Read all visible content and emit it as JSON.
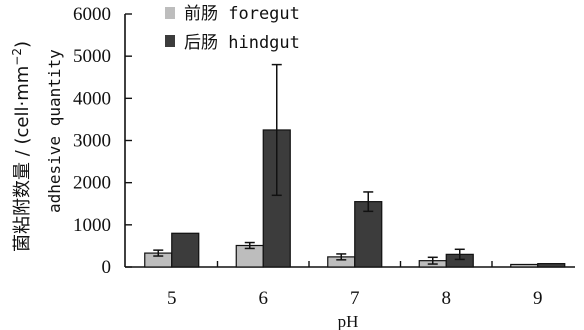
{
  "chart_data": {
    "type": "bar",
    "categories": [
      "5",
      "6",
      "7",
      "8",
      "9"
    ],
    "series": [
      {
        "name": "前肠 foregut",
        "color": "#bdbdbd",
        "values": [
          330,
          510,
          240,
          150,
          60
        ],
        "errors": [
          70,
          70,
          70,
          80,
          0
        ]
      },
      {
        "name": "后肠 hindgut",
        "color": "#3c3c3c",
        "values": [
          800,
          3250,
          1550,
          300,
          80
        ],
        "errors": [
          0,
          1550,
          230,
          120,
          0
        ]
      }
    ],
    "ylim": [
      0,
      6000
    ],
    "yticks": [
      "0",
      "1000",
      "2000",
      "3000",
      "4000",
      "5000",
      "6000"
    ],
    "xlabel": "pH",
    "ylabel_cn": "菌粘附数量 / (cell·mm",
    "ylabel_en": "adhesive quantity",
    "ylabel_sup": "−2",
    "ylabel_close": ")",
    "legend_placement": "top-left",
    "grid": false
  }
}
